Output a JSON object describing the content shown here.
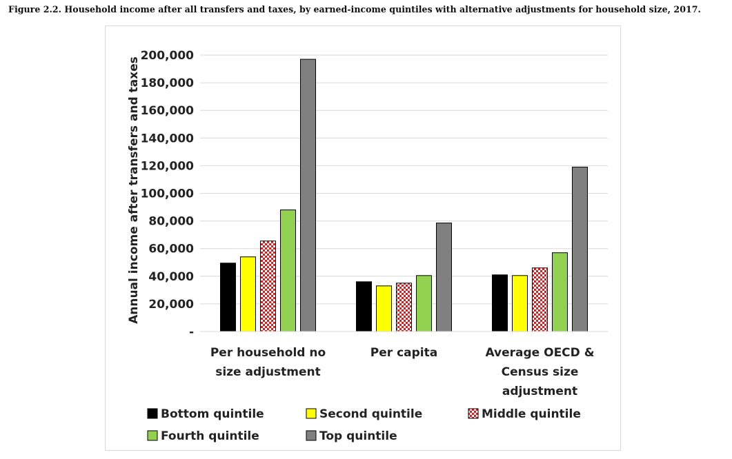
{
  "figure": {
    "caption": "Figure 2.2. Household income after all transfers and taxes, by earned-income quintiles with alternative adjustments for household size, 2017."
  },
  "chart_data": {
    "type": "bar",
    "ylabel": "Annual income after transfers and taxes",
    "ylim": [
      0,
      200000
    ],
    "yticks": [
      {
        "value": 0,
        "label": "-"
      },
      {
        "value": 20000,
        "label": "20,000"
      },
      {
        "value": 40000,
        "label": "40,000"
      },
      {
        "value": 60000,
        "label": "60,000"
      },
      {
        "value": 80000,
        "label": "80,000"
      },
      {
        "value": 100000,
        "label": "100,000"
      },
      {
        "value": 120000,
        "label": "120,000"
      },
      {
        "value": 140000,
        "label": "140,000"
      },
      {
        "value": 160000,
        "label": "160,000"
      },
      {
        "value": 180000,
        "label": "180,000"
      },
      {
        "value": 200000,
        "label": "200,000"
      }
    ],
    "grid": true,
    "legend_position": "bottom",
    "categories": [
      [
        "Per household no",
        "size adjustment"
      ],
      [
        "Per capita"
      ],
      [
        "Average OECD &",
        "Census size",
        "adjustment"
      ]
    ],
    "series": [
      {
        "name": "Bottom quintile",
        "color": "#000000",
        "pattern": "solid",
        "values": [
          49500,
          36000,
          41000
        ]
      },
      {
        "name": "Second quintile",
        "color": "#ffff00",
        "pattern": "solid",
        "values": [
          54000,
          33000,
          40500
        ]
      },
      {
        "name": "Middle quintile",
        "color": "#e31a1c",
        "pattern": "checker",
        "values": [
          65500,
          35000,
          46000
        ]
      },
      {
        "name": "Fourth quintile",
        "color": "#92d050",
        "pattern": "solid",
        "values": [
          88000,
          40500,
          57000
        ]
      },
      {
        "name": "Top quintile",
        "color": "#808080",
        "pattern": "solid",
        "values": [
          197000,
          78500,
          119000
        ]
      }
    ]
  }
}
